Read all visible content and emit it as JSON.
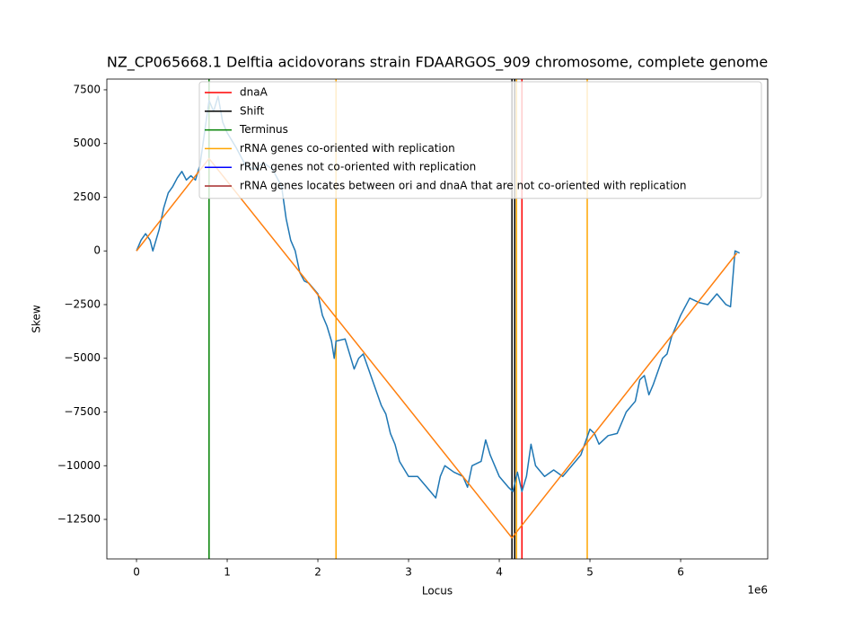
{
  "chart_data": {
    "type": "line",
    "title": "NZ_CP065668.1 Delftia acidovorans strain FDAARGOS_909 chromosome, complete genome",
    "xlabel": "Locus",
    "ylabel": "Skew",
    "x_offset_label": "1e6",
    "xlim": [
      -327000,
      6960000
    ],
    "ylim": [
      -14340,
      8000
    ],
    "xticks": [
      {
        "value": 0,
        "label": "0"
      },
      {
        "value": 1000000,
        "label": "1"
      },
      {
        "value": 2000000,
        "label": "2"
      },
      {
        "value": 3000000,
        "label": "3"
      },
      {
        "value": 4000000,
        "label": "4"
      },
      {
        "value": 5000000,
        "label": "5"
      },
      {
        "value": 6000000,
        "label": "6"
      }
    ],
    "yticks": [
      {
        "value": -12500,
        "label": "−12500"
      },
      {
        "value": -10000,
        "label": "−10000"
      },
      {
        "value": -7500,
        "label": "−7500"
      },
      {
        "value": -5000,
        "label": "−5000"
      },
      {
        "value": -2500,
        "label": "−2500"
      },
      0,
      2500,
      5000,
      7500
    ],
    "lines": [
      {
        "color": "#1f77b4",
        "x": [
          0,
          50000,
          100000,
          150000,
          180000,
          250000,
          300000,
          350000,
          400000,
          450000,
          500000,
          550000,
          600000,
          650000,
          700000,
          750000,
          800000,
          850000,
          900000,
          950000,
          1000000,
          1100000,
          1200000,
          1300000,
          1400000,
          1500000,
          1600000,
          1650000,
          1700000,
          1750000,
          1800000,
          1850000,
          1900000,
          2000000,
          2050000,
          2100000,
          2150000,
          2180000,
          2200000,
          2300000,
          2350000,
          2400000,
          2450000,
          2500000,
          2600000,
          2700000,
          2750000,
          2800000,
          2850000,
          2900000,
          3000000,
          3100000,
          3200000,
          3300000,
          3350000,
          3400000,
          3500000,
          3600000,
          3650000,
          3700000,
          3800000,
          3850000,
          3900000,
          4000000,
          4100000,
          4150000,
          4200000,
          4250000,
          4300000,
          4350000,
          4400000,
          4500000,
          4600000,
          4700000,
          4800000,
          4900000,
          5000000,
          5050000,
          5100000,
          5200000,
          5300000,
          5400000,
          5500000,
          5550000,
          5600000,
          5650000,
          5700000,
          5800000,
          5850000,
          5900000,
          6000000,
          6100000,
          6200000,
          6300000,
          6400000,
          6500000,
          6550000,
          6600000,
          6650000
        ],
        "y": [
          0,
          500,
          800,
          500,
          0,
          1000,
          2000,
          2700,
          3000,
          3400,
          3700,
          3300,
          3500,
          3300,
          4000,
          5500,
          7000,
          6500,
          7200,
          6000,
          5500,
          4800,
          4000,
          3800,
          4100,
          3800,
          3000,
          1500,
          500,
          0,
          -1000,
          -1400,
          -1500,
          -2000,
          -3000,
          -3500,
          -4200,
          -5000,
          -4200,
          -4100,
          -4800,
          -5500,
          -5000,
          -4800,
          -6000,
          -7200,
          -7600,
          -8500,
          -9000,
          -9800,
          -10500,
          -10500,
          -11000,
          -11500,
          -10500,
          -10000,
          -10300,
          -10500,
          -11000,
          -10000,
          -9800,
          -8800,
          -9500,
          -10500,
          -11000,
          -11200,
          -10300,
          -11200,
          -10500,
          -9000,
          -10000,
          -10500,
          -10200,
          -10500,
          -10000,
          -9500,
          -8300,
          -8500,
          -9000,
          -8600,
          -8500,
          -7500,
          -7000,
          -6000,
          -5800,
          -6700,
          -6200,
          -5000,
          -4800,
          -4000,
          -3000,
          -2200,
          -2400,
          -2500,
          -2000,
          -2500,
          -2600,
          0,
          -100
        ]
      },
      {
        "color": "#ff7f0e",
        "x": [
          0,
          800000,
          4140000,
          6620000
        ],
        "y": [
          0,
          4300,
          -13360,
          -100
        ]
      }
    ],
    "markers": [
      {
        "name": "dnaA",
        "color": "#ff0000",
        "x": [
          4250000
        ]
      },
      {
        "name": "Shift",
        "color": "#000000",
        "x": [
          4140000,
          4170000
        ]
      },
      {
        "name": "Terminus",
        "color": "#008000",
        "x": [
          800000
        ]
      },
      {
        "name": "rRNA genes co-oriented with replication",
        "color": "#ffa500",
        "x": [
          2200000,
          4190000,
          4970000
        ]
      },
      {
        "name": "rRNA genes not co-oriented with replication",
        "color": "#0000ff",
        "x": []
      },
      {
        "name": "rRNA genes locates between ori and dnaA that are not co-oriented with replication",
        "color": "#a52a2a",
        "x": []
      }
    ]
  }
}
